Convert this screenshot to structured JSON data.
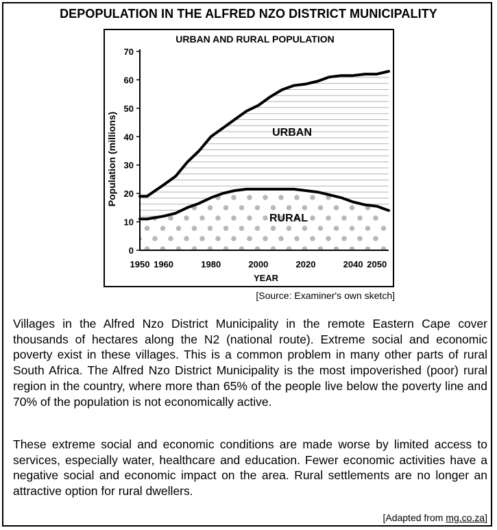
{
  "page": {
    "title": "DEPOPULATION IN THE ALFRED NZO DISTRICT MUNICIPALITY",
    "source": "[Source: Examiner's own sketch]",
    "paragraphs": [
      "Villages in the Alfred Nzo District Municipality in the remote Eastern Cape cover thousands of hectares along the N2 (national route). Extreme social and economic poverty exist in these villages. This is a common problem in many other parts of rural South Africa. The Alfred Nzo District Municipality is the most impoverished (poor) rural region in the country, where more than 65% of the people live below the poverty line and 70% of the population is not economically active.",
      "These extreme social and economic conditions are made worse by limited access to services, especially water, healthcare and education. Fewer economic activities have a negative social and economic impact on the area. Rural settlements are no longer an attractive option for rural dwellers."
    ],
    "adapted_prefix": "[Adapted from ",
    "adapted_link": "mg.co.za",
    "adapted_suffix": "]"
  },
  "chart_data": {
    "type": "area",
    "title": "URBAN AND RURAL POPULATION",
    "xlabel": "YEAR",
    "ylabel": "Population (millions)",
    "xlim": [
      1950,
      2055
    ],
    "ylim": [
      0,
      70
    ],
    "x_ticks": [
      1950,
      1960,
      1980,
      2000,
      2020,
      2040,
      2050
    ],
    "y_ticks": [
      0,
      10,
      20,
      30,
      40,
      50,
      60,
      70
    ],
    "area_labels": [
      "URBAN",
      "RURAL"
    ],
    "x": [
      1950,
      1953,
      1960,
      1965,
      1970,
      1975,
      1980,
      1985,
      1990,
      1995,
      2000,
      2005,
      2010,
      2015,
      2020,
      2025,
      2030,
      2035,
      2040,
      2045,
      2050,
      2055
    ],
    "series": [
      {
        "name": "URBAN",
        "values": [
          19,
          19,
          23,
          26,
          31,
          35,
          40,
          43,
          46,
          49,
          51,
          54,
          56.5,
          58,
          58.5,
          59.5,
          61,
          61.5,
          61.5,
          62,
          62,
          63
        ]
      },
      {
        "name": "RURAL",
        "values": [
          11,
          11,
          12,
          13,
          15,
          16.5,
          18.5,
          20,
          21,
          21.5,
          21.5,
          21.5,
          21.5,
          21.5,
          21,
          20.5,
          19.5,
          18.5,
          17,
          16,
          15.5,
          14
        ]
      }
    ],
    "colors": {
      "line": "#000000",
      "hatch": "#b0b0b0",
      "dots": "#b8b8b8"
    }
  }
}
